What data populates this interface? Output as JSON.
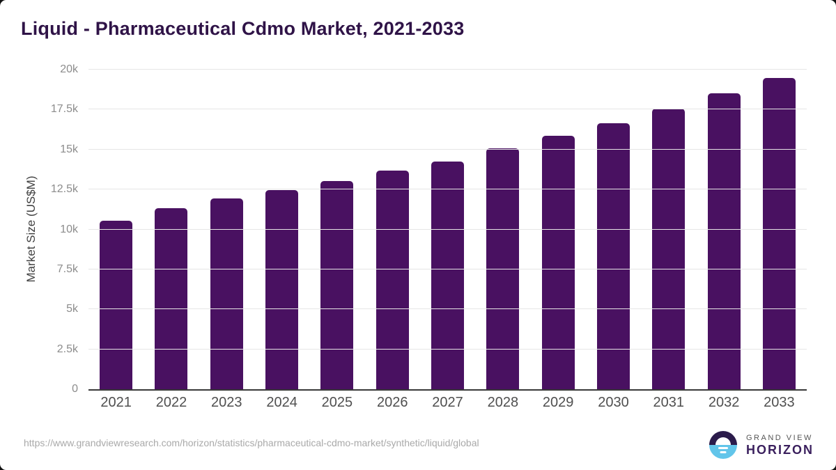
{
  "header": {
    "title": "Liquid - Pharmaceutical Cdmo Market, 2021-2033"
  },
  "chart_data": {
    "type": "bar",
    "title": "Liquid - Pharmaceutical Cdmo Market, 2021-2033",
    "categories": [
      "2021",
      "2022",
      "2023",
      "2024",
      "2025",
      "2026",
      "2027",
      "2028",
      "2029",
      "2030",
      "2031",
      "2032",
      "2033"
    ],
    "values": [
      10560,
      11330,
      11950,
      12470,
      13050,
      13680,
      14260,
      15090,
      15860,
      16650,
      17570,
      18500,
      19490
    ],
    "xlabel": "",
    "ylabel": "Market Size (US$M)",
    "ylim": [
      0,
      20000
    ],
    "yticks": [
      0,
      2500,
      5000,
      7500,
      10000,
      12500,
      15000,
      17500,
      20000
    ],
    "ytick_labels": [
      "0",
      "2.5k",
      "5k",
      "7.5k",
      "10k",
      "12.5k",
      "15k",
      "17.5k",
      "20k"
    ],
    "grid": "horizontal",
    "legend": "none",
    "bar_color": "#491161"
  },
  "footer": {
    "source_url": "https://www.grandviewresearch.com/horizon/statistics/pharmaceutical-cdmo-market/synthetic/liquid/global",
    "logo_line1": "GRAND VIEW",
    "logo_line2": "HORIZON"
  },
  "colors": {
    "bar": "#491161",
    "title": "#2f1347",
    "gridline": "#e6e6e6",
    "axis_line": "#383838",
    "logo_dark": "#2b1b4b",
    "logo_blue": "#62c5ea"
  }
}
